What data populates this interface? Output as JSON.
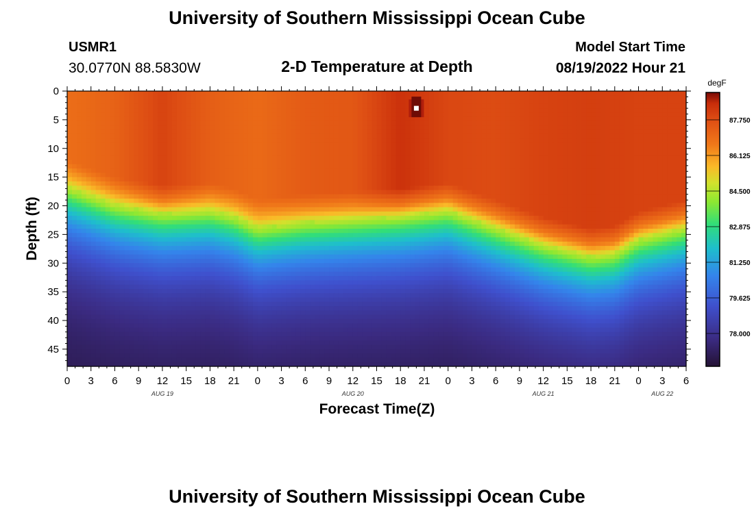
{
  "header": {
    "title": "University of Southern Mississippi Ocean Cube",
    "station": "USMR1",
    "coords": "30.0770N  88.5830W",
    "subtitle": "2-D Temperature at Depth",
    "model_label": "Model Start Time",
    "model_time": "08/19/2022 Hour 21"
  },
  "footer": {
    "title": "University of Southern Mississippi Ocean Cube"
  },
  "chart_data": {
    "type": "heatmap",
    "title": "2-D Temperature at Depth",
    "xlabel": "Forecast Time(Z)",
    "ylabel": "Depth (ft)",
    "x_range_hours": [
      0,
      78
    ],
    "y_range_ft": [
      0,
      48
    ],
    "x_tick_hours": [
      0,
      3,
      6,
      9,
      12,
      15,
      18,
      21,
      24,
      27,
      30,
      33,
      36,
      39,
      42,
      45,
      48,
      51,
      54,
      57,
      60,
      63,
      66,
      69,
      72,
      75,
      78
    ],
    "x_tick_labels": [
      "0",
      "3",
      "6",
      "9",
      "12",
      "15",
      "18",
      "21",
      "0",
      "3",
      "6",
      "9",
      "12",
      "15",
      "18",
      "21",
      "0",
      "3",
      "6",
      "9",
      "12",
      "15",
      "18",
      "21",
      "0",
      "3",
      "6"
    ],
    "y_ticks": [
      0,
      5,
      10,
      15,
      20,
      25,
      30,
      35,
      40,
      45
    ],
    "y_tick_labels": [
      "0",
      "5",
      "10",
      "15",
      "20",
      "25",
      "30",
      "35",
      "40",
      "45"
    ],
    "date_labels": [
      {
        "label": "AUG 19",
        "hour": 12
      },
      {
        "label": "AUG 20",
        "hour": 36
      },
      {
        "label": "AUG 21",
        "hour": 60
      },
      {
        "label": "AUG 22",
        "hour": 75
      }
    ],
    "colorbar": {
      "unit": "degF",
      "min": 76.5,
      "max": 89.0,
      "tick_values": [
        87.75,
        86.125,
        84.5,
        82.875,
        81.25,
        79.625,
        78.0
      ],
      "tick_labels": [
        "87.750",
        "86.125",
        "84.500",
        "82.875",
        "81.250",
        "79.625",
        "78.000"
      ]
    },
    "warm_layer_bottom_ft": {
      "hours": [
        0,
        6,
        12,
        18,
        21,
        24,
        30,
        36,
        42,
        48,
        54,
        60,
        66,
        69,
        72,
        78
      ],
      "depth": [
        17,
        20,
        21.5,
        21,
        22,
        24,
        23,
        22.5,
        22,
        21,
        24,
        27,
        29,
        28.5,
        26,
        24
      ]
    },
    "surface_temp_degF": {
      "hours": [
        0,
        6,
        12,
        18,
        24,
        30,
        36,
        42,
        48,
        54,
        60,
        66,
        72,
        78
      ],
      "temp": [
        86.9,
        87.2,
        88.0,
        87.3,
        87.0,
        87.4,
        87.5,
        88.4,
        87.9,
        87.8,
        88.0,
        88.1,
        88.0,
        88.0
      ]
    },
    "hot_spot": {
      "hour": 44,
      "depth_ft": 3,
      "temp_degF": 89.5
    }
  }
}
